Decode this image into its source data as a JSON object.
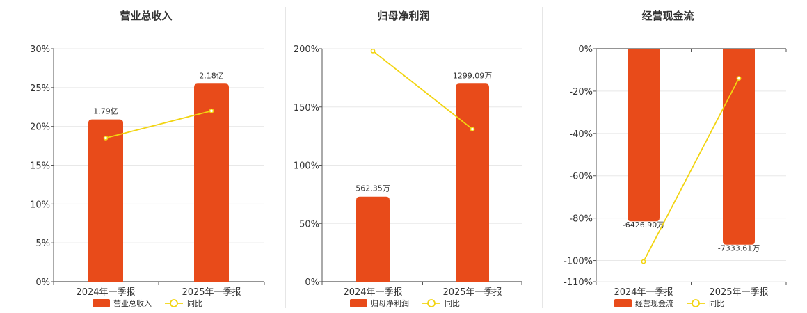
{
  "colors": {
    "bar": "#E84B1A",
    "line": "#F2D411",
    "grid": "#E8E8E8",
    "axis": "#555555",
    "divider": "#CCCCCC"
  },
  "chart_data": [
    {
      "type": "bar",
      "title": "营业总收入",
      "categories": [
        "2024年一季报",
        "2025年一季报"
      ],
      "ylim": [
        0,
        30
      ],
      "ticks": [
        0,
        5,
        10,
        15,
        20,
        25,
        30
      ],
      "tick_labels": [
        "0%",
        "5%",
        "10%",
        "15%",
        "20%",
        "25%",
        "30%"
      ],
      "bar_values": [
        20.9,
        25.5
      ],
      "bar_labels": [
        "1.79亿",
        "2.18亿"
      ],
      "line_values": [
        18.5,
        22.0
      ],
      "legend": [
        "营业总收入",
        "同比"
      ],
      "grid": true
    },
    {
      "type": "bar",
      "title": "归母净利润",
      "categories": [
        "2024年一季报",
        "2025年一季报"
      ],
      "ylim": [
        0,
        200
      ],
      "ticks": [
        0,
        50,
        100,
        150,
        200
      ],
      "tick_labels": [
        "0%",
        "50%",
        "100%",
        "150%",
        "200%"
      ],
      "bar_values": [
        73,
        170
      ],
      "bar_labels": [
        "562.35万",
        "1299.09万"
      ],
      "line_values": [
        198,
        131
      ],
      "legend": [
        "归母净利润",
        "同比"
      ],
      "grid": true
    },
    {
      "type": "bar",
      "title": "经营现金流",
      "categories": [
        "2024年一季报",
        "2025年一季报"
      ],
      "ylim": [
        -110,
        0
      ],
      "ticks": [
        0,
        -20,
        -40,
        -60,
        -80,
        -100,
        -110
      ],
      "tick_labels": [
        "0%",
        "-20%",
        "-40%",
        "-60%",
        "-80%",
        "-100%",
        "-110%"
      ],
      "bar_values": [
        -81.5,
        -92.5
      ],
      "bar_labels": [
        "-6426.90万",
        "-7333.61万"
      ],
      "line_values": [
        -100.5,
        -14
      ],
      "legend": [
        "经营现金流",
        "同比"
      ],
      "grid": true
    }
  ]
}
